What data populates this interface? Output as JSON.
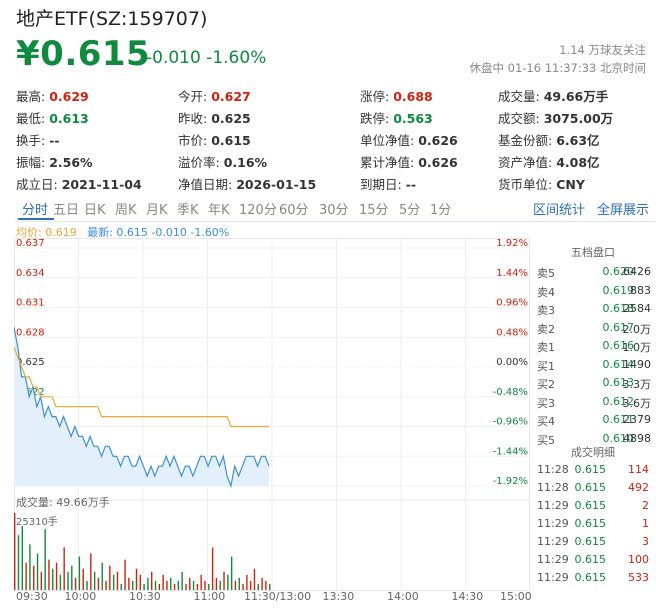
{
  "header": {
    "title": "地产ETF(SZ:159707)",
    "price": "¥0.615",
    "change": "-0.010 -1.60%",
    "followers": "1.14 万球友关注",
    "status": "休盘中 01-16 11:37:33 北京时间"
  },
  "quote_rows": [
    [
      {
        "label": "最高:",
        "value": "0.629",
        "color": "red"
      },
      {
        "label": "今开:",
        "value": "0.627",
        "color": "red"
      },
      {
        "label": "涨停:",
        "value": "0.688",
        "color": "red"
      },
      {
        "label": "成交量:",
        "value": "49.66万手",
        "color": "black"
      }
    ],
    [
      {
        "label": "最低:",
        "value": "0.613",
        "color": "green"
      },
      {
        "label": "昨收:",
        "value": "0.625",
        "color": "black"
      },
      {
        "label": "跌停:",
        "value": "0.563",
        "color": "green"
      },
      {
        "label": "成交额:",
        "value": "3075.00万",
        "color": "black"
      }
    ],
    [
      {
        "label": "换手:",
        "value": "--",
        "color": "black"
      },
      {
        "label": "市价:",
        "value": "0.615",
        "color": "black"
      },
      {
        "label": "单位净值:",
        "value": "0.626",
        "color": "black"
      },
      {
        "label": "基金份额:",
        "value": "6.63亿",
        "color": "black"
      }
    ],
    [
      {
        "label": "振幅:",
        "value": "2.56%",
        "color": "black"
      },
      {
        "label": "溢价率:",
        "value": "0.16%",
        "color": "black"
      },
      {
        "label": "累计净值:",
        "value": "0.626",
        "color": "black"
      },
      {
        "label": "资产净值:",
        "value": "4.08亿",
        "color": "black"
      }
    ],
    [
      {
        "label": "成立日:",
        "value": "2021-11-04",
        "color": "black"
      },
      {
        "label": "净值日期:",
        "value": "2026-01-15",
        "color": "black"
      },
      {
        "label": "到期日:",
        "value": "--",
        "color": "black"
      },
      {
        "label": "货币单位:",
        "value": "CNY",
        "color": "black"
      }
    ]
  ],
  "tabs": [
    "分时",
    "五日",
    "日K",
    "周K",
    "月K",
    "季K",
    "年K",
    "120分",
    "60分",
    "30分",
    "15分",
    "5分",
    "1分"
  ],
  "tab_links": [
    "区间统计",
    "全屏展示"
  ],
  "legend": {
    "avg": "均价: 0.619",
    "latest": "最新: 0.615 -0.010 -1.60%"
  },
  "colors": {
    "up": "#d1220f",
    "down": "#0f8a3e",
    "price_line": "#3b8fd9",
    "avg_line": "#f0a830",
    "link": "#2a6fb8"
  },
  "chart_data": {
    "type": "line",
    "y_ticks": [
      "0.637",
      "0.634",
      "0.631",
      "0.628",
      "0.625",
      "0.622",
      "0.619",
      "0.616",
      "0.613"
    ],
    "pct_ticks": [
      "1.92%",
      "1.44%",
      "0.96%",
      "0.48%",
      "0.00%",
      "-0.48%",
      "-0.96%",
      "-1.44%",
      "-1.92%"
    ],
    "ylim": [
      0.613,
      0.637
    ],
    "x_ticks": [
      "09:30",
      "10:00",
      "10:30",
      "11:00",
      "11:30/13:00",
      "13:30",
      "14:00",
      "14:30",
      "15:00"
    ],
    "price_series": [
      0.629,
      0.627,
      0.624,
      0.624,
      0.622,
      0.623,
      0.621,
      0.622,
      0.62,
      0.621,
      0.62,
      0.62,
      0.619,
      0.62,
      0.619,
      0.618,
      0.619,
      0.618,
      0.618,
      0.617,
      0.618,
      0.617,
      0.617,
      0.616,
      0.617,
      0.617,
      0.616,
      0.616,
      0.615,
      0.616,
      0.616,
      0.615,
      0.615,
      0.616,
      0.615,
      0.614,
      0.615,
      0.614,
      0.615,
      0.615,
      0.616,
      0.615,
      0.616,
      0.615,
      0.614,
      0.615,
      0.615,
      0.614,
      0.615,
      0.616,
      0.616,
      0.615,
      0.616,
      0.616,
      0.615,
      0.616,
      0.614,
      0.613,
      0.615,
      0.614,
      0.615,
      0.616,
      0.616,
      0.616,
      0.615,
      0.616,
      0.616,
      0.615
    ],
    "avg_series": [
      0.627,
      0.626,
      0.625,
      0.624,
      0.624,
      0.623,
      0.623,
      0.622,
      0.622,
      0.622,
      0.622,
      0.621,
      0.621,
      0.621,
      0.621,
      0.621,
      0.621,
      0.621,
      0.621,
      0.621,
      0.621,
      0.621,
      0.621,
      0.62,
      0.62,
      0.62,
      0.62,
      0.62,
      0.62,
      0.62,
      0.62,
      0.62,
      0.62,
      0.62,
      0.62,
      0.62,
      0.62,
      0.62,
      0.62,
      0.62,
      0.62,
      0.62,
      0.62,
      0.62,
      0.62,
      0.62,
      0.62,
      0.62,
      0.62,
      0.62,
      0.62,
      0.62,
      0.62,
      0.62,
      0.62,
      0.62,
      0.62,
      0.619,
      0.619,
      0.619,
      0.619,
      0.619,
      0.619,
      0.619,
      0.619,
      0.619,
      0.619,
      0.619
    ],
    "volume_label": "成交量: 49.66万手",
    "volume_max_label": "25310手",
    "volume_max": 25310,
    "volumes": [
      25310,
      18000,
      21000,
      9000,
      15000,
      8000,
      12000,
      6000,
      20000,
      10000,
      7000,
      9000,
      5000,
      14000,
      6000,
      8000,
      4000,
      11000,
      7000,
      3000,
      12000,
      6000,
      4000,
      9000,
      3000,
      8000,
      5000,
      6000,
      2000,
      10000,
      4000,
      3000,
      7000,
      5000,
      2000,
      4000,
      6000,
      3000,
      2000,
      5000,
      3000,
      4000,
      2000,
      3000,
      6000,
      2000,
      4000,
      3000,
      2000,
      5000,
      3000,
      2000,
      14000,
      4000,
      3000,
      6000,
      5000,
      11000,
      3000,
      4000,
      2000,
      5000,
      3000,
      7000,
      2000,
      4000,
      3000,
      2000
    ]
  },
  "orderbook": {
    "header": "五档盘口",
    "rows": [
      {
        "label": "卖5",
        "price": "0.620",
        "vol": "6426",
        "color": "green"
      },
      {
        "label": "卖4",
        "price": "0.619",
        "vol": "883",
        "color": "green"
      },
      {
        "label": "卖3",
        "price": "0.618",
        "vol": "2584",
        "color": "green"
      },
      {
        "label": "卖2",
        "price": "0.617",
        "vol": "2.0万",
        "color": "green"
      },
      {
        "label": "卖1",
        "price": "0.616",
        "vol": "1.0万",
        "color": "green"
      },
      {
        "label": "买1",
        "price": "0.614",
        "vol": "1490",
        "color": "green"
      },
      {
        "label": "买2",
        "price": "0.613",
        "vol": "3.3万",
        "color": "green"
      },
      {
        "label": "买3",
        "price": "0.612",
        "vol": "3.6万",
        "color": "green"
      },
      {
        "label": "买4",
        "price": "0.611",
        "vol": "2379",
        "color": "green"
      },
      {
        "label": "买5",
        "price": "0.610",
        "vol": "4898",
        "color": "green"
      }
    ]
  },
  "trades": {
    "header": "成交明细",
    "rows": [
      {
        "time": "11:28",
        "price": "0.615",
        "vol": "114",
        "color": "red"
      },
      {
        "time": "11:28",
        "price": "0.615",
        "vol": "492",
        "color": "red"
      },
      {
        "time": "11:29",
        "price": "0.615",
        "vol": "2",
        "color": "red"
      },
      {
        "time": "11:29",
        "price": "0.615",
        "vol": "1",
        "color": "red"
      },
      {
        "time": "11:29",
        "price": "0.615",
        "vol": "3",
        "color": "red"
      },
      {
        "time": "11:29",
        "price": "0.615",
        "vol": "100",
        "color": "red"
      },
      {
        "time": "11:29",
        "price": "0.615",
        "vol": "533",
        "color": "red"
      }
    ]
  }
}
